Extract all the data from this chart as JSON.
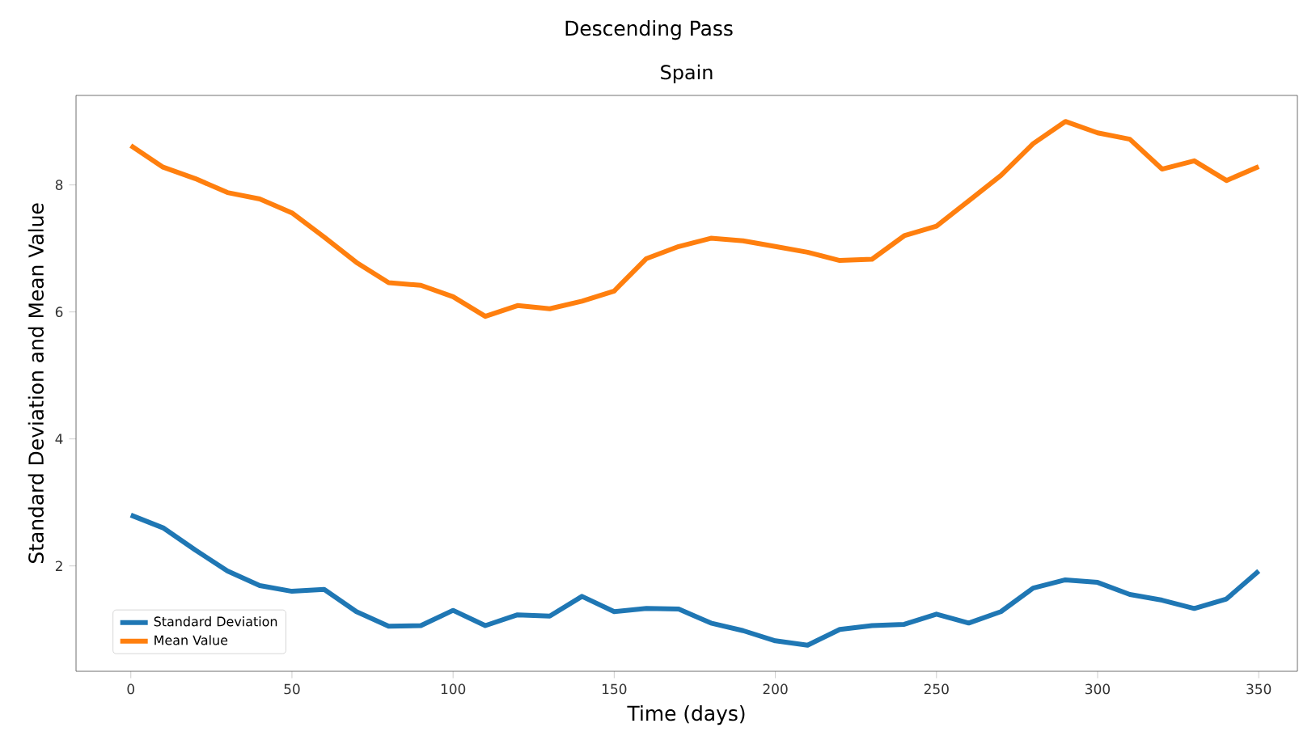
{
  "chart_data": {
    "type": "line",
    "title": "Descending Pass",
    "subtitle": "Spain",
    "xlabel": "Time (days)",
    "ylabel": "Standard Deviation and Mean Value",
    "x": [
      0,
      10,
      20,
      30,
      40,
      50,
      60,
      70,
      80,
      90,
      100,
      110,
      120,
      130,
      140,
      150,
      160,
      170,
      180,
      190,
      200,
      210,
      220,
      230,
      240,
      250,
      260,
      270,
      280,
      290,
      300,
      310,
      320,
      330,
      340,
      350
    ],
    "series": [
      {
        "name": "Standard Deviation",
        "color": "#1f77b4",
        "values": [
          2.8,
          2.6,
          2.25,
          1.92,
          1.69,
          1.6,
          1.63,
          1.28,
          1.05,
          1.06,
          1.3,
          1.06,
          1.23,
          1.21,
          1.52,
          1.28,
          1.33,
          1.32,
          1.1,
          0.98,
          0.82,
          0.75,
          1.0,
          1.06,
          1.08,
          1.24,
          1.1,
          1.28,
          1.65,
          1.78,
          1.74,
          1.55,
          1.46,
          1.33,
          1.48,
          1.92
        ]
      },
      {
        "name": "Mean Value",
        "color": "#ff7f0e",
        "values": [
          8.62,
          8.28,
          8.1,
          7.88,
          7.78,
          7.56,
          7.18,
          6.78,
          6.46,
          6.42,
          6.24,
          5.93,
          6.1,
          6.05,
          6.17,
          6.33,
          6.84,
          7.03,
          7.16,
          7.12,
          7.03,
          6.94,
          6.81,
          6.83,
          7.2,
          7.35,
          7.75,
          8.15,
          8.65,
          9.0,
          8.82,
          8.72,
          8.25,
          8.38,
          8.07,
          8.29
        ]
      }
    ],
    "xlim": [
      -17,
      362
    ],
    "ylim": [
      0.34,
      9.41
    ],
    "xticks": [
      0,
      50,
      100,
      150,
      200,
      250,
      300,
      350
    ],
    "yticks": [
      2,
      4,
      6,
      8
    ],
    "legend": "bottom left",
    "grid": false,
    "line_style": "solid",
    "marker": "none"
  }
}
